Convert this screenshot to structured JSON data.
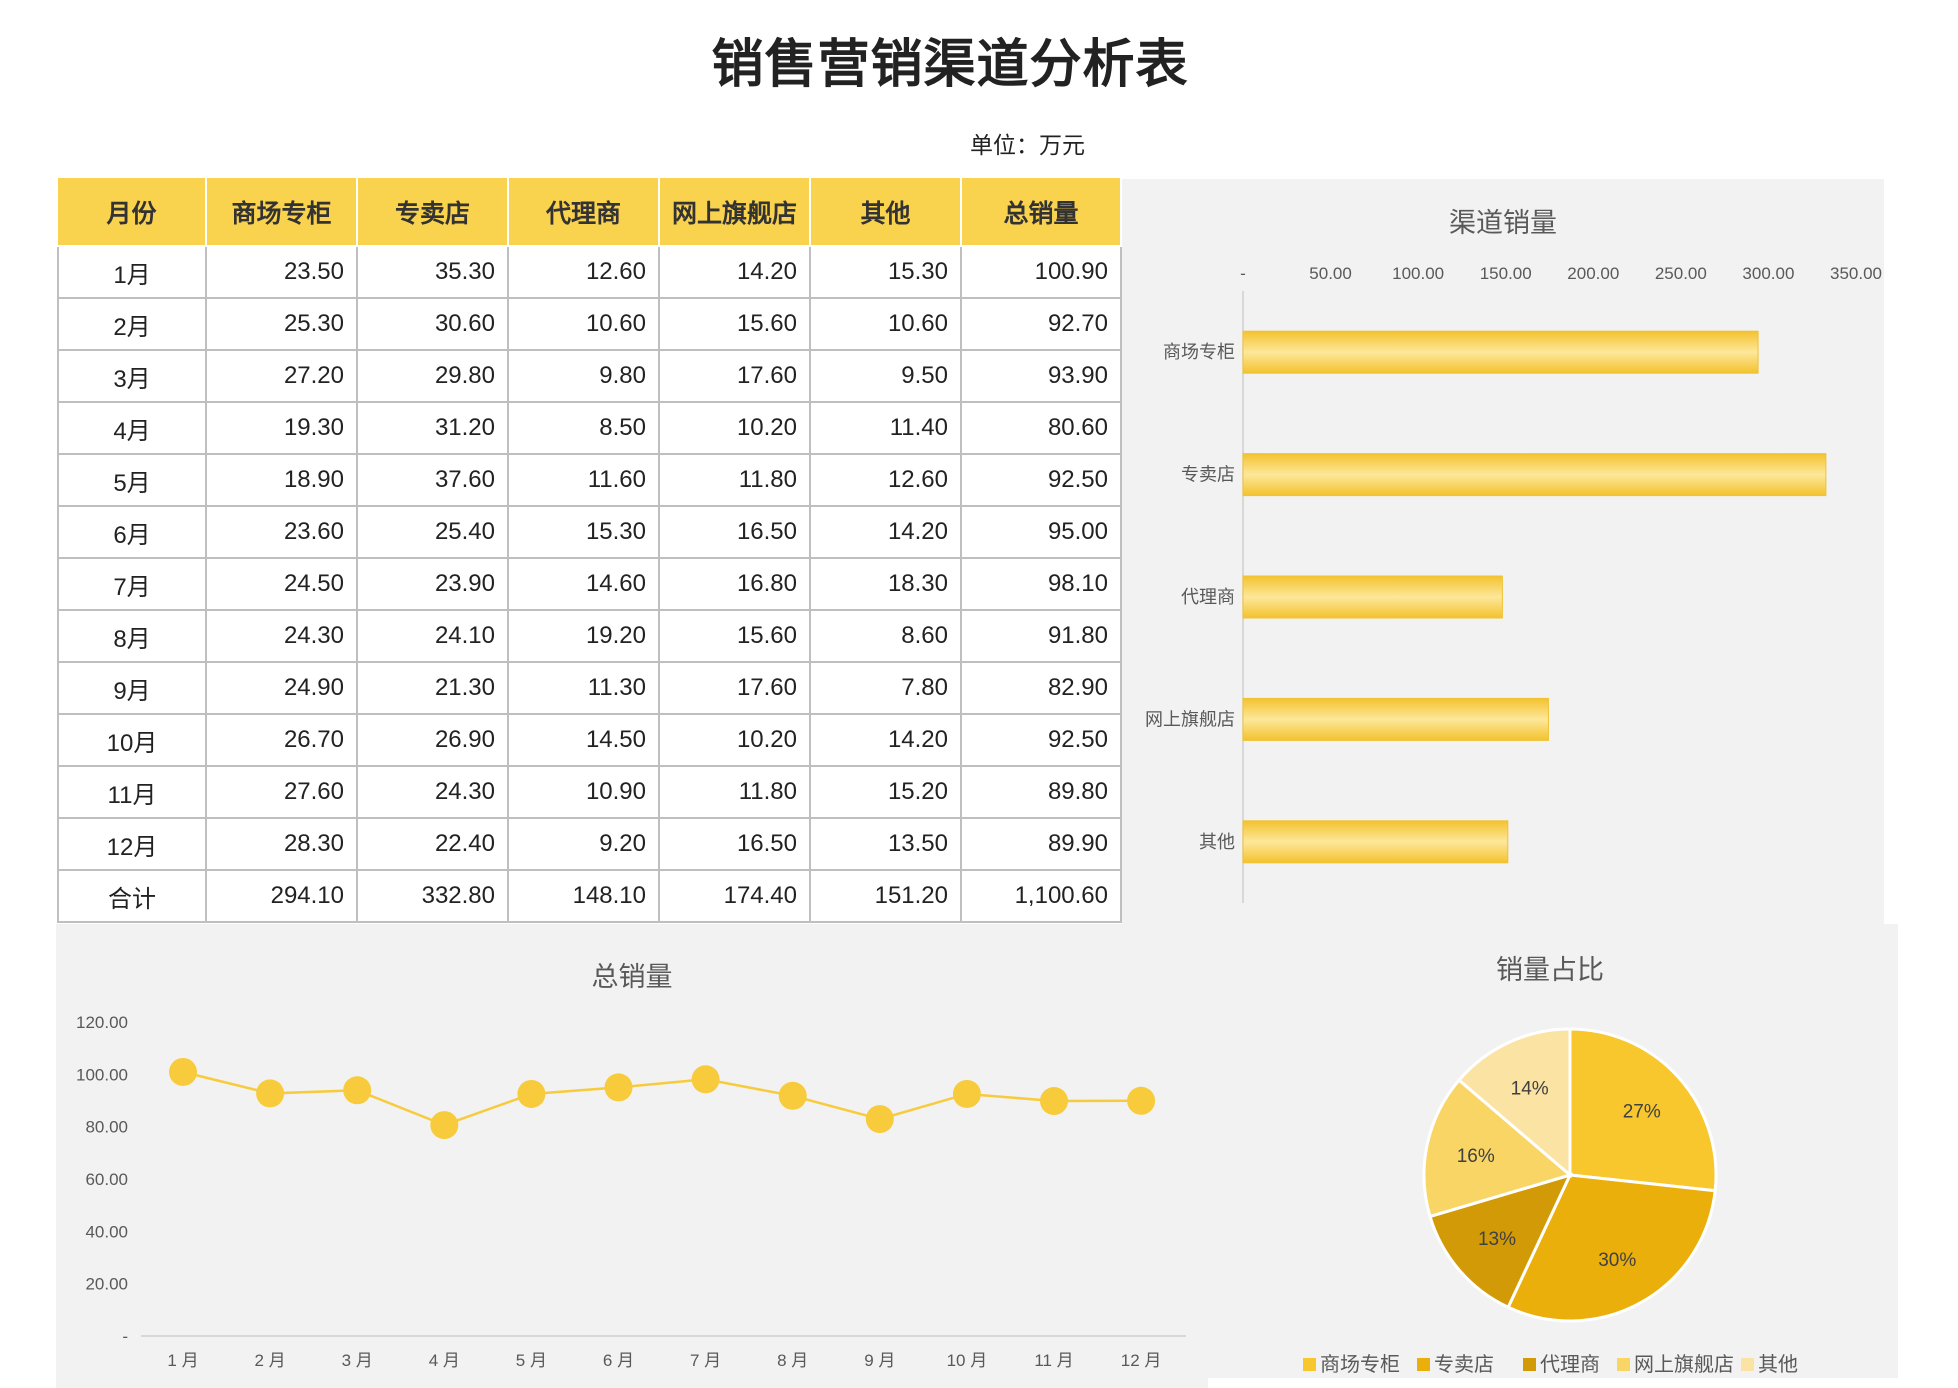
{
  "title": "销售营销渠道分析表",
  "unit": "单位：万元",
  "table": {
    "headers": [
      "月份",
      "商场专柜",
      "专卖店",
      "代理商",
      "网上旗舰店",
      "其他",
      "总销量"
    ],
    "rows": [
      [
        "1月",
        "23.50",
        "35.30",
        "12.60",
        "14.20",
        "15.30",
        "100.90"
      ],
      [
        "2月",
        "25.30",
        "30.60",
        "10.60",
        "15.60",
        "10.60",
        "92.70"
      ],
      [
        "3月",
        "27.20",
        "29.80",
        "9.80",
        "17.60",
        "9.50",
        "93.90"
      ],
      [
        "4月",
        "19.30",
        "31.20",
        "8.50",
        "10.20",
        "11.40",
        "80.60"
      ],
      [
        "5月",
        "18.90",
        "37.60",
        "11.60",
        "11.80",
        "12.60",
        "92.50"
      ],
      [
        "6月",
        "23.60",
        "25.40",
        "15.30",
        "16.50",
        "14.20",
        "95.00"
      ],
      [
        "7月",
        "24.50",
        "23.90",
        "14.60",
        "16.80",
        "18.30",
        "98.10"
      ],
      [
        "8月",
        "24.30",
        "24.10",
        "19.20",
        "15.60",
        "8.60",
        "91.80"
      ],
      [
        "9月",
        "24.90",
        "21.30",
        "11.30",
        "17.60",
        "7.80",
        "82.90"
      ],
      [
        "10月",
        "26.70",
        "26.90",
        "14.50",
        "10.20",
        "14.20",
        "92.50"
      ],
      [
        "11月",
        "27.60",
        "24.30",
        "10.90",
        "11.80",
        "15.20",
        "89.80"
      ],
      [
        "12月",
        "28.30",
        "22.40",
        "9.20",
        "16.50",
        "13.50",
        "89.90"
      ],
      [
        "合计",
        "294.10",
        "332.80",
        "148.10",
        "174.40",
        "151.20",
        "1,100.60"
      ]
    ]
  },
  "colors": {
    "header_fill": "#F9D24E",
    "bar": "#F7CB3C",
    "line": "#F7CB3C",
    "pie": [
      "#F8C62D",
      "#EBAF0C",
      "#D39A08",
      "#F9D566",
      "#FBE3A4"
    ]
  },
  "chart_data": [
    {
      "type": "bar",
      "orientation": "horizontal",
      "title": "渠道销量",
      "categories": [
        "商场专柜",
        "专卖店",
        "代理商",
        "网上旗舰店",
        "其他"
      ],
      "values": [
        294.1,
        332.8,
        148.1,
        174.4,
        151.2
      ],
      "xlim": [
        0,
        350
      ],
      "xticks": [
        "-",
        "50.00",
        "100.00",
        "150.00",
        "200.00",
        "250.00",
        "300.00",
        "350.00"
      ],
      "grid": false
    },
    {
      "type": "line",
      "title": "总销量",
      "categories": [
        "1 月",
        "2 月",
        "3 月",
        "4 月",
        "5 月",
        "6 月",
        "7 月",
        "8 月",
        "9 月",
        "10 月",
        "11 月",
        "12 月"
      ],
      "values": [
        100.9,
        92.7,
        93.9,
        80.6,
        92.5,
        95.0,
        98.1,
        91.8,
        82.9,
        92.5,
        89.8,
        89.9
      ],
      "ylim": [
        0,
        120
      ],
      "yticks": [
        "-",
        "20.00",
        "40.00",
        "60.00",
        "80.00",
        "100.00",
        "120.00"
      ],
      "grid": false
    },
    {
      "type": "pie",
      "title": "销量占比",
      "labels": [
        "商场专柜",
        "专卖店",
        "代理商",
        "网上旗舰店",
        "其他"
      ],
      "values": [
        294.1,
        332.8,
        148.1,
        174.4,
        151.2
      ],
      "percent_labels": [
        "27%",
        "30%",
        "13%",
        "16%",
        "14%"
      ],
      "legend": "bottom"
    }
  ]
}
